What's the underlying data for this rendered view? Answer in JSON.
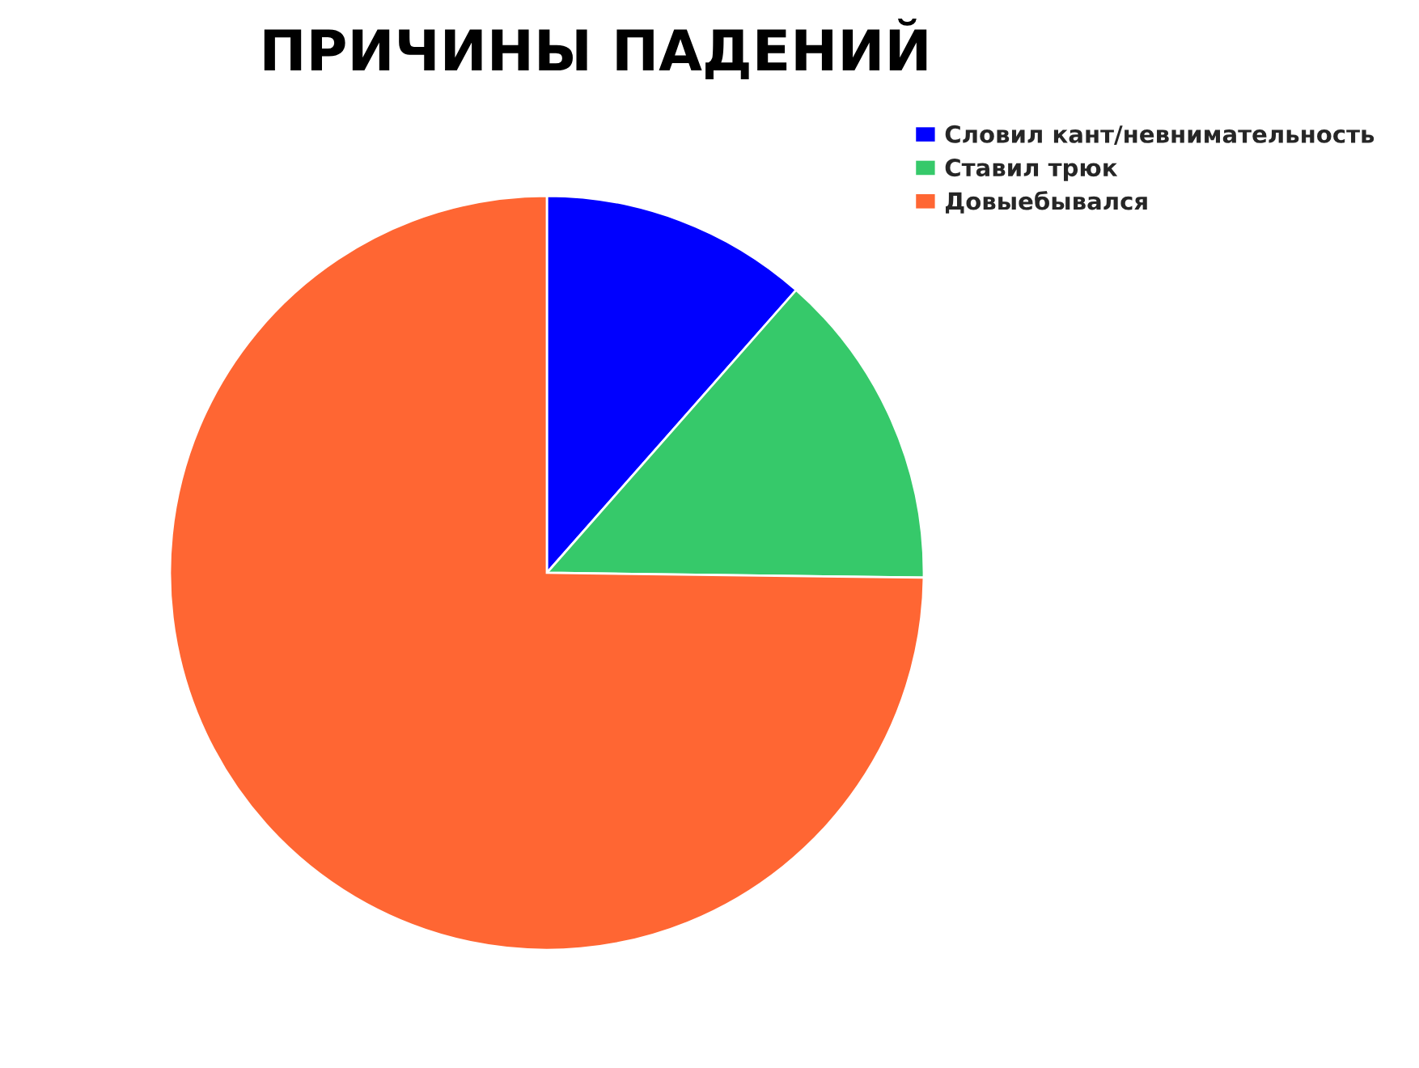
{
  "chart_data": {
    "type": "pie",
    "title": "ПРИЧИНЫ ПАДЕНИЙ",
    "categories": [
      "Словил кант/невнимательность",
      "Ставил трюк",
      "Довыебывался"
    ],
    "values": [
      11.5,
      13.7,
      74.8
    ],
    "colors": [
      "#0000ff",
      "#36c96a",
      "#ff6633"
    ],
    "legend": "top right"
  }
}
